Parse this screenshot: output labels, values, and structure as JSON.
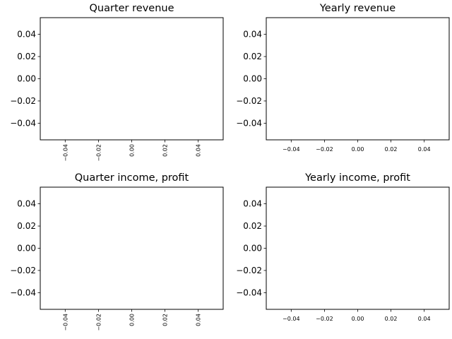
{
  "chart_data": [
    {
      "type": "line",
      "title": "Quarter revenue",
      "xlabel": "",
      "ylabel": "",
      "xlim": [
        -0.055,
        0.055
      ],
      "ylim": [
        -0.055,
        0.055
      ],
      "xticks": [
        "−0.04",
        "−0.02",
        "0.00",
        "0.02",
        "0.04"
      ],
      "yticks": [
        "0.04",
        "0.02",
        "0.00",
        "−0.02",
        "−0.04"
      ],
      "xtick_rotation": "vertical",
      "grid": false,
      "series": []
    },
    {
      "type": "line",
      "title": "Yearly revenue",
      "xlabel": "",
      "ylabel": "",
      "xlim": [
        -0.055,
        0.055
      ],
      "ylim": [
        -0.055,
        0.055
      ],
      "xticks": [
        "−0.04",
        "−0.02",
        "0.00",
        "0.02",
        "0.04"
      ],
      "yticks": [
        "0.04",
        "0.02",
        "0.00",
        "−0.02",
        "−0.04"
      ],
      "xtick_rotation": "horizontal",
      "grid": false,
      "series": []
    },
    {
      "type": "line",
      "title": "Quarter income, profit",
      "xlabel": "",
      "ylabel": "",
      "xlim": [
        -0.055,
        0.055
      ],
      "ylim": [
        -0.055,
        0.055
      ],
      "xticks": [
        "−0.04",
        "−0.02",
        "0.00",
        "0.02",
        "0.04"
      ],
      "yticks": [
        "0.04",
        "0.02",
        "0.00",
        "−0.02",
        "−0.04"
      ],
      "xtick_rotation": "vertical",
      "grid": false,
      "series": []
    },
    {
      "type": "line",
      "title": "Yearly income, profit",
      "xlabel": "",
      "ylabel": "",
      "xlim": [
        -0.055,
        0.055
      ],
      "ylim": [
        -0.055,
        0.055
      ],
      "xticks": [
        "−0.04",
        "−0.02",
        "0.00",
        "0.02",
        "0.04"
      ],
      "yticks": [
        "0.04",
        "0.02",
        "0.00",
        "−0.02",
        "−0.04"
      ],
      "xtick_rotation": "horizontal",
      "grid": false,
      "series": []
    }
  ]
}
